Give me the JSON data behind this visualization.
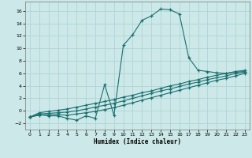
{
  "xlabel": "Humidex (Indice chaleur)",
  "xlim": [
    -0.5,
    23.5
  ],
  "ylim": [
    -3.0,
    17.5
  ],
  "yticks": [
    -2,
    0,
    2,
    4,
    6,
    8,
    10,
    12,
    14,
    16
  ],
  "xticks": [
    0,
    1,
    2,
    3,
    4,
    5,
    6,
    7,
    8,
    9,
    10,
    11,
    12,
    13,
    14,
    15,
    16,
    17,
    18,
    19,
    20,
    21,
    22,
    23
  ],
  "bg_color": "#cce8e8",
  "grid_color": "#aad0d0",
  "line_color": "#1a7070",
  "series1_y": [
    -1.0,
    -0.6,
    -0.8,
    -0.8,
    -1.2,
    -1.5,
    -0.8,
    -1.2,
    4.2,
    -0.7,
    10.5,
    12.2,
    14.5,
    15.2,
    16.3,
    16.2,
    15.5,
    8.5,
    6.5,
    6.3,
    6.1,
    6.0,
    6.2,
    6.3
  ],
  "series2_y": [
    -1.0,
    -0.7,
    -0.6,
    -0.6,
    -0.7,
    -0.5,
    -0.3,
    -0.1,
    0.2,
    0.5,
    0.9,
    1.3,
    1.7,
    2.1,
    2.5,
    2.9,
    3.3,
    3.7,
    4.1,
    4.5,
    4.9,
    5.2,
    5.6,
    6.0
  ],
  "series3_y": [
    -1.0,
    -0.5,
    -0.4,
    -0.3,
    -0.2,
    0.0,
    0.3,
    0.6,
    0.9,
    1.2,
    1.6,
    2.0,
    2.4,
    2.8,
    3.2,
    3.5,
    3.9,
    4.3,
    4.6,
    5.0,
    5.3,
    5.6,
    6.0,
    6.2
  ],
  "series4_y": [
    -1.0,
    -0.3,
    -0.1,
    0.1,
    0.3,
    0.6,
    0.9,
    1.2,
    1.5,
    1.8,
    2.2,
    2.5,
    2.9,
    3.2,
    3.6,
    4.0,
    4.3,
    4.7,
    5.0,
    5.4,
    5.7,
    6.0,
    6.3,
    6.5
  ]
}
